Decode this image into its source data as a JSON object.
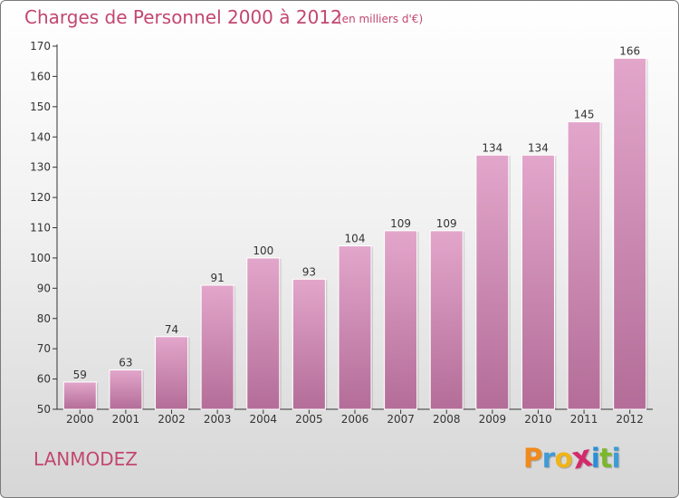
{
  "chart_data": {
    "type": "bar",
    "title": "Charges de Personnel 2000 à 2012",
    "subtitle": "(en milliers d'€)",
    "categories": [
      "2000",
      "2001",
      "2002",
      "2003",
      "2004",
      "2005",
      "2006",
      "2007",
      "2008",
      "2009",
      "2010",
      "2011",
      "2012"
    ],
    "values": [
      59,
      63,
      74,
      91,
      100,
      93,
      104,
      109,
      109,
      134,
      134,
      145,
      166
    ],
    "ylim": [
      50,
      170
    ],
    "yticks": [
      50,
      60,
      70,
      80,
      90,
      100,
      110,
      120,
      130,
      140,
      150,
      160,
      170
    ],
    "grid": false,
    "bar_color_top": "#e3a6cb",
    "bar_color_bottom": "#b36d98",
    "xlabel": "",
    "ylabel": ""
  },
  "location": "LANMODEZ",
  "brand": {
    "letters": [
      "P",
      "r",
      "o",
      "x",
      "i",
      "t",
      "i"
    ],
    "colors": [
      "#f08a1c",
      "#3f9bd6",
      "#f0b418",
      "#d42a6b",
      "#2a8fd6",
      "#7ab82a",
      "#3f9bd6"
    ]
  },
  "colors": {
    "accent": "#c2476f"
  }
}
